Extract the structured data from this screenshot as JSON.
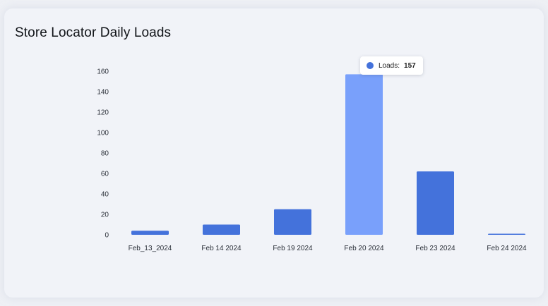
{
  "title": "Store Locator Daily Loads",
  "colors": {
    "bar": "#4472db",
    "bar_highlight": "#79a0fb",
    "tooltip_dot": "#4472db"
  },
  "tooltip": {
    "label": "Loads",
    "separator": ":",
    "value": "157"
  },
  "chart_data": {
    "type": "bar",
    "title": "Store Locator Daily Loads",
    "categories": [
      "Feb_13_2024",
      "Feb 14 2024",
      "Feb 19 2024",
      "Feb 20 2024",
      "Feb 23 2024",
      "Feb 24 2024"
    ],
    "series": [
      {
        "name": "Loads",
        "values": [
          4,
          10,
          25,
          157,
          62,
          1
        ]
      }
    ],
    "highlighted_index": 3,
    "ylim": [
      0,
      160
    ],
    "yticks": [
      0,
      20,
      40,
      60,
      80,
      100,
      120,
      140,
      160
    ],
    "grid": false,
    "legend": "none"
  }
}
